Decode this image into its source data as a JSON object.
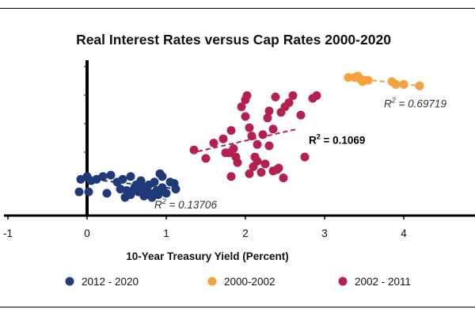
{
  "chart_data": {
    "type": "scatter",
    "title": "Real Interest Rates versus Cap Rates 2000-2020",
    "xlabel": "10-Year Treasury Yield (Percent)",
    "ylabel": "",
    "xlim": [
      -1,
      4.9
    ],
    "ylim": [
      0,
      1
    ],
    "x_ticks": [
      -1,
      0,
      1,
      2,
      3,
      4
    ],
    "x_tick_labels": [
      "-1",
      "0",
      "1",
      "2",
      "3",
      "4"
    ],
    "legend_position": "bottom",
    "series": [
      {
        "name": "2012 - 2020",
        "color": "#1f3a7a",
        "trendline": {
          "x": [
            -0.1,
            1.15
          ],
          "y": [
            0.27,
            0.19
          ]
        },
        "r2_label": {
          "prefix": "R",
          "sup": "2",
          "text": " = 0.13706",
          "x": 0.85,
          "y": 0.05,
          "style": "italic"
        },
        "points": [
          {
            "x": -0.08,
            "y": 0.26
          },
          {
            "x": 0.0,
            "y": 0.28
          },
          {
            "x": 0.05,
            "y": 0.25
          },
          {
            "x": 0.12,
            "y": 0.26
          },
          {
            "x": -0.1,
            "y": 0.17
          },
          {
            "x": 0.02,
            "y": 0.17
          },
          {
            "x": 0.2,
            "y": 0.28
          },
          {
            "x": 0.3,
            "y": 0.29
          },
          {
            "x": 0.38,
            "y": 0.24
          },
          {
            "x": 0.45,
            "y": 0.26
          },
          {
            "x": 0.55,
            "y": 0.28
          },
          {
            "x": 0.25,
            "y": 0.16
          },
          {
            "x": 0.42,
            "y": 0.19
          },
          {
            "x": 0.5,
            "y": 0.18
          },
          {
            "x": 0.48,
            "y": 0.13
          },
          {
            "x": 0.55,
            "y": 0.15
          },
          {
            "x": 0.6,
            "y": 0.2
          },
          {
            "x": 0.65,
            "y": 0.17
          },
          {
            "x": 0.7,
            "y": 0.21
          },
          {
            "x": 0.72,
            "y": 0.14
          },
          {
            "x": 0.75,
            "y": 0.18
          },
          {
            "x": 0.78,
            "y": 0.22
          },
          {
            "x": 0.8,
            "y": 0.16
          },
          {
            "x": 0.82,
            "y": 0.13
          },
          {
            "x": 0.85,
            "y": 0.24
          },
          {
            "x": 0.88,
            "y": 0.18
          },
          {
            "x": 0.9,
            "y": 0.15
          },
          {
            "x": 0.95,
            "y": 0.2
          },
          {
            "x": 0.95,
            "y": 0.28
          },
          {
            "x": 1.05,
            "y": 0.24
          },
          {
            "x": 1.1,
            "y": 0.23
          },
          {
            "x": 1.12,
            "y": 0.19
          },
          {
            "x": 1.0,
            "y": 0.16
          },
          {
            "x": 0.92,
            "y": 0.3
          },
          {
            "x": 0.68,
            "y": 0.25
          },
          {
            "x": 0.62,
            "y": 0.22
          }
        ]
      },
      {
        "name": "2000-2002",
        "color": "#f5a03a",
        "trendline": {
          "x": [
            3.3,
            4.2
          ],
          "y": [
            0.99,
            0.93
          ]
        },
        "r2_label": {
          "prefix": "R",
          "sup": "2",
          "text": " = 0.69719",
          "x": 3.75,
          "y": 0.775,
          "style": "italic"
        },
        "points": [
          {
            "x": 3.3,
            "y": 0.99
          },
          {
            "x": 3.38,
            "y": 0.99
          },
          {
            "x": 3.45,
            "y": 0.98
          },
          {
            "x": 3.5,
            "y": 0.97
          },
          {
            "x": 3.55,
            "y": 0.97
          },
          {
            "x": 3.42,
            "y": 1.0
          },
          {
            "x": 3.48,
            "y": 0.96
          },
          {
            "x": 3.85,
            "y": 0.96
          },
          {
            "x": 3.9,
            "y": 0.94
          },
          {
            "x": 4.0,
            "y": 0.94
          },
          {
            "x": 4.2,
            "y": 0.93
          }
        ]
      },
      {
        "name": "2002 - 2011",
        "color": "#b5204f",
        "trendline": {
          "x": [
            1.4,
            2.65
          ],
          "y": [
            0.46,
            0.62
          ]
        },
        "r2_label": {
          "prefix": "R",
          "sup": "2",
          "text": " = 0.1069",
          "x": 2.8,
          "y": 0.515,
          "style": "bold"
        },
        "points": [
          {
            "x": 1.35,
            "y": 0.47
          },
          {
            "x": 1.5,
            "y": 0.41
          },
          {
            "x": 1.6,
            "y": 0.52
          },
          {
            "x": 1.72,
            "y": 0.55
          },
          {
            "x": 1.75,
            "y": 0.45
          },
          {
            "x": 1.82,
            "y": 0.61
          },
          {
            "x": 1.8,
            "y": 0.45
          },
          {
            "x": 1.85,
            "y": 0.48
          },
          {
            "x": 1.88,
            "y": 0.42
          },
          {
            "x": 1.82,
            "y": 0.28
          },
          {
            "x": 1.95,
            "y": 0.78
          },
          {
            "x": 2.0,
            "y": 0.71
          },
          {
            "x": 2.05,
            "y": 0.63
          },
          {
            "x": 2.08,
            "y": 0.57
          },
          {
            "x": 2.1,
            "y": 0.35
          },
          {
            "x": 2.12,
            "y": 0.42
          },
          {
            "x": 2.15,
            "y": 0.39
          },
          {
            "x": 2.2,
            "y": 0.31
          },
          {
            "x": 2.25,
            "y": 0.37
          },
          {
            "x": 2.28,
            "y": 0.7
          },
          {
            "x": 2.3,
            "y": 0.75
          },
          {
            "x": 2.35,
            "y": 0.62
          },
          {
            "x": 2.38,
            "y": 0.85
          },
          {
            "x": 2.35,
            "y": 0.32
          },
          {
            "x": 2.42,
            "y": 0.34
          },
          {
            "x": 2.45,
            "y": 0.74
          },
          {
            "x": 2.5,
            "y": 0.78
          },
          {
            "x": 2.48,
            "y": 0.27
          },
          {
            "x": 2.55,
            "y": 0.81
          },
          {
            "x": 2.6,
            "y": 0.86
          },
          {
            "x": 2.7,
            "y": 0.72
          },
          {
            "x": 2.75,
            "y": 0.42
          },
          {
            "x": 2.85,
            "y": 0.84
          },
          {
            "x": 2.9,
            "y": 0.86
          },
          {
            "x": 2.0,
            "y": 0.83
          },
          {
            "x": 2.02,
            "y": 0.86
          },
          {
            "x": 2.15,
            "y": 0.51
          },
          {
            "x": 2.4,
            "y": 0.33
          },
          {
            "x": 2.05,
            "y": 0.3
          },
          {
            "x": 1.9,
            "y": 0.38
          },
          {
            "x": 2.22,
            "y": 0.58
          },
          {
            "x": 2.3,
            "y": 0.5
          }
        ]
      }
    ]
  }
}
